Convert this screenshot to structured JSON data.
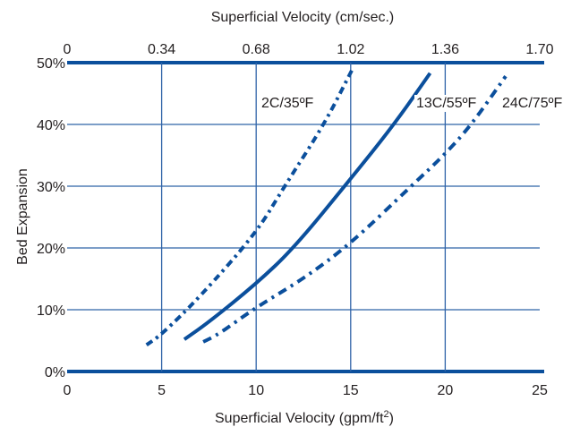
{
  "chart_data": {
    "type": "line",
    "xlabel": "Superficial Velocity (gpm/ft²)",
    "xlabel_main": "Superficial Velocity (gpm/ft",
    "xlabel_sup": "2",
    "xlabel_end": ")",
    "x2label": "Superficial Velocity (cm/sec.)",
    "ylabel": "Bed Expansion",
    "xlim": [
      0,
      25
    ],
    "ylim": [
      0,
      50
    ],
    "x_ticks": [
      "0",
      "5",
      "10",
      "15",
      "20",
      "25"
    ],
    "x2_ticks": [
      "0",
      "0.34",
      "0.68",
      "1.02",
      "1.36",
      "1.70"
    ],
    "y_ticks": [
      "0%",
      "10%",
      "20%",
      "30%",
      "40%",
      "50%"
    ],
    "grid": true,
    "colors": {
      "line": "#0b4f9c",
      "grid": "#2f63a8",
      "text": "#231f20"
    },
    "series": [
      {
        "name": "2C/35ºF",
        "style": "dashed-dotted",
        "x": [
          4.2,
          5,
          7,
          10,
          11.5,
          13.6,
          15.1
        ],
        "y": [
          4.3,
          6,
          12,
          22.4,
          30,
          40,
          49
        ]
      },
      {
        "name": "13C/55ºF",
        "style": "solid",
        "x": [
          6.2,
          7.5,
          10,
          12,
          15,
          17.3,
          19.2
        ],
        "y": [
          5.2,
          8,
          14.2,
          20,
          31.2,
          40,
          48.3
        ]
      },
      {
        "name": "24C/75ºF",
        "style": "dash-dot",
        "x": [
          7.2,
          8,
          10,
          12.5,
          15,
          18.2,
          20,
          21.4,
          23.2
        ],
        "y": [
          4.8,
          6,
          10.4,
          15,
          20.7,
          30,
          35.2,
          40,
          47.8
        ]
      }
    ]
  }
}
